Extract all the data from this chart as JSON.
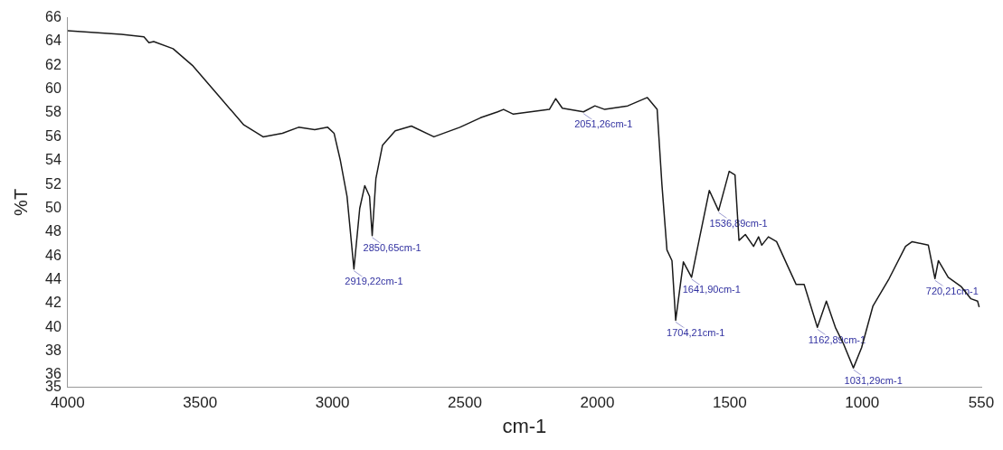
{
  "chart_data": {
    "type": "line",
    "xlabel": "cm-1",
    "ylabel": "%T",
    "xlim": [
      4000,
      550
    ],
    "xticks": [
      4000,
      3500,
      3000,
      2500,
      2000,
      1500,
      1000,
      550
    ],
    "ylim": [
      35,
      66
    ],
    "yticks": [
      35,
      36,
      38,
      40,
      42,
      44,
      46,
      48,
      50,
      52,
      54,
      56,
      58,
      60,
      62,
      64,
      66
    ],
    "grid": false,
    "legend": false,
    "marker": "none",
    "line_style": "solid",
    "series": [
      {
        "color": "#1a1a1a",
        "x": [
          4000,
          3797,
          3712,
          3693,
          3675,
          3602,
          3529,
          3432,
          3335,
          3262,
          3189,
          3128,
          3067,
          3018,
          2994,
          2970,
          2945,
          2919,
          2897,
          2878,
          2860,
          2850,
          2836,
          2811,
          2763,
          2702,
          2617,
          2519,
          2441,
          2376,
          2354,
          2317,
          2181,
          2157,
          2132,
          2052,
          2009,
          1972,
          1885,
          1811,
          1774,
          1756,
          1737,
          1718,
          1704,
          1675,
          1644,
          1614,
          1577,
          1542,
          1502,
          1480,
          1465,
          1441,
          1410,
          1391,
          1379,
          1354,
          1323,
          1280,
          1249,
          1219,
          1169,
          1135,
          1101,
          1070,
          1033,
          1002,
          959,
          898,
          836,
          811,
          750,
          725,
          712,
          675,
          625,
          589,
          564,
          558
        ],
        "values": [
          64.9,
          64.6,
          64.4,
          63.9,
          64.0,
          63.4,
          62.0,
          59.5,
          57.0,
          56.0,
          56.3,
          56.8,
          56.6,
          56.8,
          56.3,
          54.0,
          51.0,
          44.9,
          50.0,
          51.9,
          51.0,
          47.7,
          52.5,
          55.3,
          56.5,
          56.9,
          56.0,
          56.8,
          57.6,
          58.1,
          58.3,
          57.9,
          58.3,
          59.2,
          58.4,
          58.1,
          58.6,
          58.3,
          58.6,
          59.3,
          58.3,
          52.0,
          46.5,
          45.6,
          40.6,
          45.5,
          44.2,
          47.5,
          51.5,
          49.8,
          53.1,
          52.8,
          47.3,
          47.8,
          46.8,
          47.6,
          46.9,
          47.6,
          47.2,
          45.1,
          43.6,
          43.6,
          40.0,
          42.2,
          40.0,
          38.6,
          36.6,
          38.3,
          41.8,
          44.1,
          46.8,
          47.2,
          46.9,
          44.1,
          45.6,
          44.2,
          43.4,
          42.4,
          42.2,
          41.7
        ]
      }
    ],
    "annotations": [
      {
        "text": "2919,22cm-1",
        "x": 2919,
        "y": 44.9
      },
      {
        "text": "2850,65cm-1",
        "x": 2850,
        "y": 47.7
      },
      {
        "text": "2051,26cm-1",
        "x": 2052,
        "y": 58.1
      },
      {
        "text": "1704,21cm-1",
        "x": 1704,
        "y": 40.6
      },
      {
        "text": "1641,90cm-1",
        "x": 1644,
        "y": 44.2
      },
      {
        "text": "1536,89cm-1",
        "x": 1542,
        "y": 49.8
      },
      {
        "text": "1162,89cm-1",
        "x": 1169,
        "y": 40.0
      },
      {
        "text": "1031,29cm-1",
        "x": 1033,
        "y": 36.6
      },
      {
        "text": "720,21cm-1",
        "x": 725,
        "y": 44.1
      }
    ]
  }
}
